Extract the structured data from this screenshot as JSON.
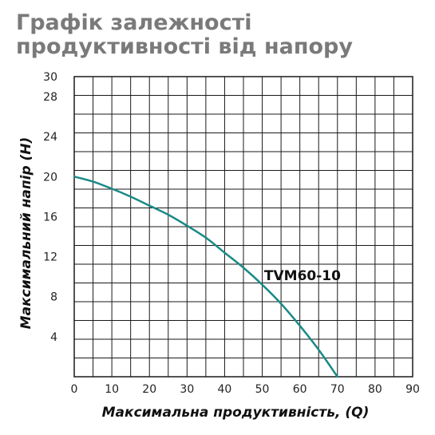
{
  "chart_data": {
    "type": "line",
    "title": "Графік залежності продуктивності від напору",
    "xlabel": "Максимальна продуктивність, (Q)",
    "ylabel": "Максимальний напір (Н)",
    "xlim": [
      0,
      90
    ],
    "ylim": [
      0,
      30
    ],
    "x_ticks": [
      0,
      10,
      20,
      30,
      40,
      50,
      60,
      70,
      80,
      90
    ],
    "x_tick_labels": [
      "0",
      "10",
      "20",
      "30",
      "40",
      "50",
      "60",
      "70",
      "80",
      "90"
    ],
    "y_ticks": [
      4,
      8,
      12,
      16,
      20,
      24,
      28,
      30
    ],
    "y_tick_labels": [
      "4",
      "8",
      "12",
      "16",
      "20",
      "24",
      "28",
      "30"
    ],
    "grid": true,
    "series": [
      {
        "name": "TVM60-10",
        "color": "#1a8a86",
        "x": [
          0,
          5,
          10,
          15,
          20,
          25,
          30,
          35,
          40,
          45,
          50,
          55,
          60,
          65,
          70
        ],
        "y": [
          20,
          19.5,
          18.8,
          18,
          17.1,
          16.2,
          15.1,
          13.9,
          12.4,
          10.9,
          9.2,
          7.3,
          5.1,
          2.7,
          0
        ]
      }
    ]
  }
}
